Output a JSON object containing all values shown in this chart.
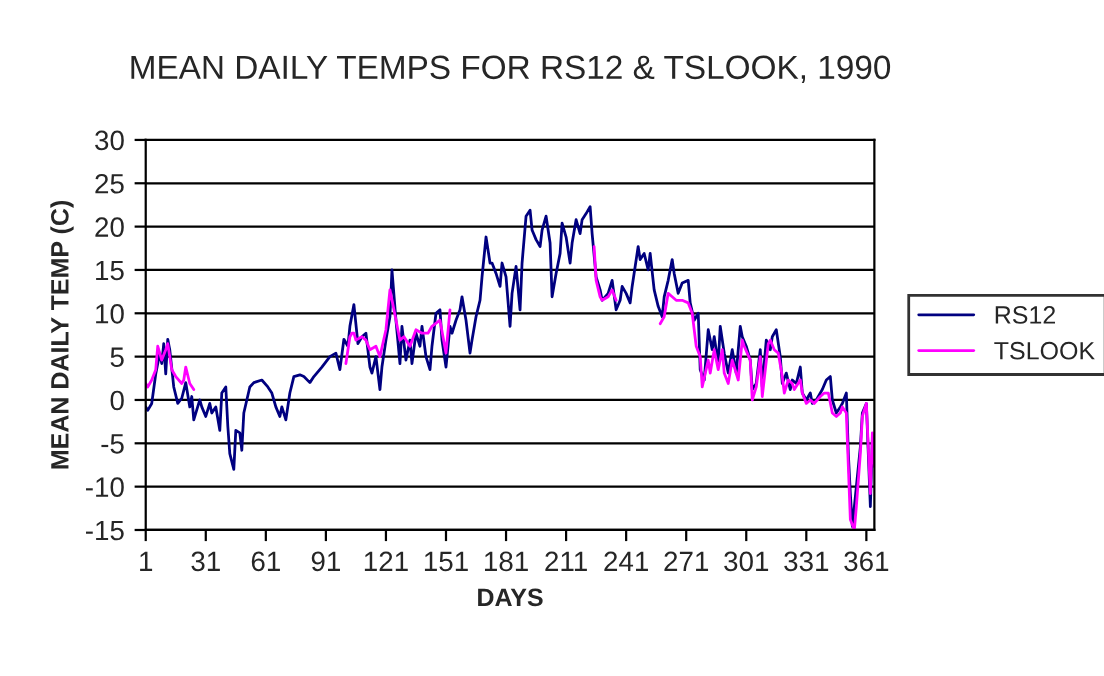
{
  "chart_data": {
    "type": "line",
    "title": "MEAN DAILY TEMPS FOR RS12 & TSLOOK, 1990",
    "xlabel": "DAYS",
    "ylabel": "MEAN DAILY TEMP (C)",
    "xlim": [
      1,
      365
    ],
    "xticks": [
      1,
      31,
      61,
      91,
      121,
      151,
      181,
      211,
      241,
      271,
      301,
      331,
      361
    ],
    "ylim": [
      -15,
      30
    ],
    "yticks": [
      -15,
      -10,
      -5,
      0,
      5,
      10,
      15,
      20,
      25,
      30
    ],
    "grid": "y",
    "legend": "right",
    "line_style": "solid",
    "marker": "none",
    "series": [
      {
        "name": "RS12",
        "color": "#000080",
        "x": [
          1,
          2,
          4,
          6,
          8,
          9,
          10,
          11,
          12,
          13,
          15,
          17,
          19,
          21,
          23,
          24,
          25,
          28,
          29,
          31,
          33,
          34,
          36,
          38,
          39,
          41,
          42,
          43,
          45,
          46,
          48,
          49,
          50,
          53,
          55,
          59,
          62,
          64,
          66,
          68,
          69,
          71,
          73,
          75,
          78,
          80,
          83,
          85,
          89,
          93,
          96,
          98,
          100,
          102,
          103,
          105,
          107,
          109,
          111,
          113,
          114,
          116,
          118,
          119,
          121,
          123,
          124,
          126,
          128,
          129,
          131,
          133,
          134,
          136,
          138,
          139,
          141,
          143,
          144,
          146,
          148,
          149,
          151,
          153,
          154,
          156,
          158,
          159,
          161,
          163,
          164,
          166,
          168,
          169,
          171,
          173,
          174,
          176,
          178,
          179,
          181,
          183,
          184,
          186,
          188,
          189,
          191,
          193,
          194,
          196,
          198,
          199,
          201,
          203,
          204,
          206,
          208,
          209,
          211,
          213,
          214,
          216,
          218,
          219,
          221,
          223,
          224,
          226,
          228,
          229,
          232,
          234,
          236,
          238,
          239,
          241,
          243,
          244,
          247,
          248,
          250,
          252,
          253,
          255,
          257,
          259,
          260,
          262,
          264,
          265,
          267,
          269,
          272,
          273,
          275,
          277,
          278,
          280,
          282,
          284,
          285,
          287,
          288,
          290,
          292,
          294,
          296,
          298,
          299,
          301,
          303,
          304,
          306,
          308,
          309,
          311,
          313,
          314,
          316,
          318,
          319,
          321,
          323,
          324,
          326,
          328,
          329,
          331,
          333,
          334,
          336,
          338,
          339,
          341,
          343,
          344,
          346,
          348,
          349,
          351,
          352,
          353,
          354,
          356,
          358,
          359,
          361,
          363,
          364,
          365
        ],
        "values": [
          -0.8,
          -1.2,
          -0.4,
          3,
          5.4,
          4.2,
          6.5,
          3,
          7,
          5.8,
          1.5,
          -0.4,
          0.2,
          2,
          -0.8,
          0.4,
          -2.3,
          0,
          -0.8,
          -1.9,
          -0.4,
          -1.5,
          -0.8,
          -3.5,
          0.8,
          1.5,
          -3,
          -6.2,
          -8,
          -3.5,
          -3.8,
          -5.8,
          -1.5,
          1.5,
          2,
          2.3,
          1.5,
          0.8,
          -0.8,
          -1.9,
          -0.8,
          -2.3,
          0.8,
          2.7,
          2.9,
          2.7,
          2,
          2.7,
          3.8,
          5,
          5.4,
          3.5,
          7,
          6.2,
          8.5,
          11,
          6.5,
          7.3,
          7.7,
          3.8,
          3.1,
          5,
          1.2,
          3.8,
          6.9,
          9.6,
          15,
          9.2,
          4.2,
          8.5,
          4.6,
          6.9,
          4.2,
          7.7,
          6.2,
          8.5,
          5,
          3.5,
          6.2,
          10,
          10.4,
          6.9,
          3.8,
          8.5,
          7.7,
          9.2,
          10.4,
          11.9,
          9.2,
          5.4,
          6.9,
          9.6,
          11.5,
          14.2,
          18.8,
          15.8,
          15.8,
          14.6,
          13.1,
          15.8,
          14.2,
          8.5,
          12.3,
          15.4,
          10.4,
          15.8,
          21.2,
          21.9,
          19.6,
          18.5,
          17.7,
          19.6,
          21.2,
          18.1,
          11.9,
          14.6,
          16.9,
          20.4,
          18.8,
          15.8,
          18.1,
          20.8,
          19.2,
          20.8,
          21.5,
          22.3,
          19.2,
          14.2,
          12.7,
          11.5,
          12.3,
          13.8,
          10.4,
          11.5,
          13.1,
          12.3,
          11.2,
          13.1,
          17.7,
          16.2,
          16.9,
          15,
          16.9,
          12.7,
          10.8,
          9.6,
          11.9,
          13.8,
          16.2,
          14.6,
          12.3,
          13.5,
          13.8,
          11.2,
          9.2,
          10,
          3.5,
          2.3,
          8.1,
          5.8,
          7.3,
          4.2,
          8.5,
          5.4,
          3.1,
          5.8,
          3.1,
          8.5,
          7.3,
          6.2,
          4.6,
          1.2,
          1.9,
          5.8,
          1.5,
          6.9,
          5.8,
          7.3,
          8.1,
          5,
          1.9,
          3.1,
          1.2,
          2.3,
          1.9,
          3.8,
          0.8,
          0,
          0.8,
          -0.4,
          0,
          0.8,
          1.2,
          2.3,
          2.7,
          0,
          -1.5,
          -0.8,
          -0.4,
          0.8,
          -6.2,
          -10.8,
          -14.6,
          -10,
          -5.4,
          -1.5,
          -0.4,
          -12.3,
          -4.6,
          -6.2
        ]
      },
      {
        "name": "TSLOOK",
        "color": "#ff00ff",
        "x": [
          1,
          2,
          4,
          6,
          7,
          9,
          11,
          12,
          14,
          16,
          19,
          20,
          21,
          23,
          25,
          60,
          101,
          103,
          104,
          105,
          106,
          109,
          111,
          113,
          116,
          118,
          121,
          123,
          125,
          128,
          130,
          133,
          136,
          139,
          142,
          144,
          148,
          151,
          153,
          190,
          225,
          226,
          228,
          229,
          232,
          234,
          236,
          245,
          258,
          260,
          262,
          264,
          266,
          269,
          272,
          274,
          276,
          278,
          279,
          282,
          283,
          285,
          287,
          289,
          290,
          292,
          294,
          297,
          299,
          300,
          303,
          304,
          306,
          308,
          309,
          312,
          313,
          315,
          317,
          319,
          320,
          322,
          324,
          325,
          328,
          329,
          331,
          333,
          335,
          338,
          340,
          342,
          344,
          346,
          348,
          349,
          351,
          352,
          353,
          355,
          356,
          358,
          359,
          361,
          363,
          364,
          365
        ],
        "values": [
          1.9,
          1.5,
          2.3,
          3.5,
          6.2,
          4.6,
          5.8,
          6.5,
          3.5,
          2.7,
          1.9,
          2.3,
          3.8,
          1.9,
          1.2,
          null,
          4.2,
          7.3,
          7.7,
          7.7,
          6.9,
          7.3,
          6.9,
          5.8,
          6.2,
          5,
          8.1,
          12.7,
          10.4,
          6.9,
          7.3,
          6.2,
          8.1,
          7.7,
          7.7,
          8.5,
          9.2,
          5.4,
          10.4,
          null,
          17.7,
          13.8,
          11.9,
          11.5,
          11.9,
          12.7,
          11.5,
          null,
          8.8,
          9.6,
          12.3,
          11.9,
          11.5,
          11.5,
          11.2,
          10,
          6.2,
          5,
          1.5,
          4.6,
          3.1,
          5.8,
          3.5,
          5.8,
          3.1,
          1.9,
          4.6,
          2.3,
          6.9,
          6.2,
          4.6,
          0,
          1.5,
          5,
          0.4,
          6.5,
          6.9,
          5.8,
          5.4,
          2.7,
          0.8,
          2.3,
          1.9,
          1.2,
          2.3,
          0.8,
          -0.4,
          0,
          -0.4,
          0.4,
          0.8,
          0.8,
          -1.5,
          -1.9,
          -1.5,
          -0.8,
          -1.5,
          -7.7,
          -13.8,
          -15,
          -12.3,
          -6.2,
          -1.9,
          -0.4,
          -10.8,
          -3.8,
          -7.7
        ]
      }
    ]
  }
}
